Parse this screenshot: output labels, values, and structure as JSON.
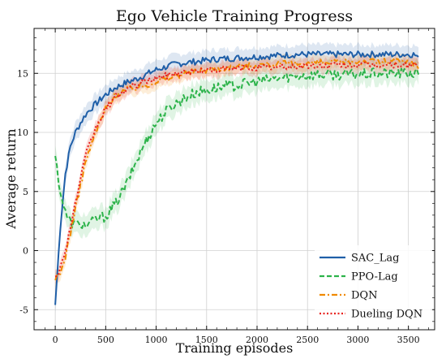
{
  "chart_data": {
    "type": "line",
    "title": "Ego Vehicle Training Progress",
    "xlabel": "Training episodes",
    "ylabel": "Average return",
    "xlim": [
      -210,
      3760
    ],
    "ylim": [
      -6.7,
      18.8
    ],
    "xticks": [
      0,
      500,
      1000,
      1500,
      2000,
      2500,
      3000,
      3500
    ],
    "yticks": [
      -5,
      0,
      5,
      10,
      15
    ],
    "grid": true,
    "legend_position": "lower-right",
    "series": [
      {
        "name": "SAC_Lag",
        "color": "#1f5fa8",
        "style": "solid",
        "band": 0.8,
        "x": [
          0,
          50,
          100,
          150,
          200,
          250,
          300,
          350,
          400,
          500,
          600,
          700,
          800,
          900,
          1000,
          1200,
          1400,
          1600,
          1800,
          2000,
          2200,
          2400,
          2600,
          2800,
          3000,
          3200,
          3400,
          3550,
          3600
        ],
        "y": [
          -4.6,
          2.0,
          6.5,
          8.8,
          10.0,
          10.8,
          11.5,
          12.0,
          12.4,
          13.2,
          13.8,
          14.2,
          14.5,
          14.9,
          15.3,
          15.8,
          16.0,
          16.2,
          16.3,
          16.4,
          16.5,
          16.6,
          16.6,
          16.6,
          16.6,
          16.6,
          16.6,
          16.6,
          16.4
        ]
      },
      {
        "name": "PPO-Lag",
        "color": "#2cb34a",
        "style": "dashed",
        "band": 0.9,
        "x": [
          0,
          50,
          100,
          150,
          200,
          250,
          300,
          350,
          400,
          450,
          500,
          600,
          700,
          800,
          900,
          1000,
          1100,
          1200,
          1300,
          1400,
          1500,
          1600,
          1800,
          2000,
          2200,
          2400,
          2600,
          2800,
          3000,
          3200,
          3400,
          3550,
          3600
        ],
        "y": [
          8.0,
          5.0,
          3.2,
          2.4,
          2.2,
          2.3,
          2.1,
          2.3,
          2.6,
          2.8,
          2.9,
          4.0,
          5.5,
          7.5,
          9.3,
          10.8,
          11.8,
          12.5,
          13.0,
          13.4,
          13.6,
          13.8,
          14.0,
          14.3,
          14.6,
          14.8,
          14.9,
          14.9,
          14.9,
          15.0,
          15.0,
          15.0,
          14.9
        ]
      },
      {
        "name": "DQN",
        "color": "#f08a00",
        "style": "dashdot",
        "band": 0.6,
        "x": [
          0,
          50,
          100,
          150,
          200,
          250,
          300,
          400,
          500,
          600,
          700,
          800,
          900,
          1000,
          1200,
          1400,
          1600,
          1800,
          2000,
          2200,
          2400,
          2600,
          2800,
          3000,
          3200,
          3400,
          3550,
          3600
        ],
        "y": [
          -2.5,
          -2.0,
          -0.5,
          1.5,
          3.5,
          5.5,
          7.5,
          10.0,
          12.0,
          13.2,
          13.6,
          13.8,
          14.0,
          14.3,
          14.8,
          15.2,
          15.4,
          15.6,
          15.7,
          15.8,
          15.8,
          15.9,
          15.9,
          16.0,
          16.0,
          16.0,
          15.9,
          15.4
        ]
      },
      {
        "name": "Dueling DQN",
        "color": "#e8221e",
        "style": "dotted",
        "band": 0.6,
        "x": [
          0,
          50,
          100,
          150,
          200,
          250,
          300,
          400,
          500,
          600,
          700,
          800,
          900,
          1000,
          1200,
          1400,
          1600,
          1800,
          2000,
          2200,
          2400,
          2600,
          2800,
          3000,
          3200,
          3400,
          3550,
          3600
        ],
        "y": [
          -2.2,
          -1.5,
          0.0,
          2.0,
          4.0,
          6.0,
          8.0,
          10.3,
          12.0,
          13.0,
          13.6,
          14.0,
          14.3,
          14.6,
          15.0,
          15.2,
          15.3,
          15.4,
          15.5,
          15.5,
          15.6,
          15.6,
          15.7,
          15.7,
          15.7,
          15.7,
          15.7,
          15.9
        ]
      }
    ]
  }
}
